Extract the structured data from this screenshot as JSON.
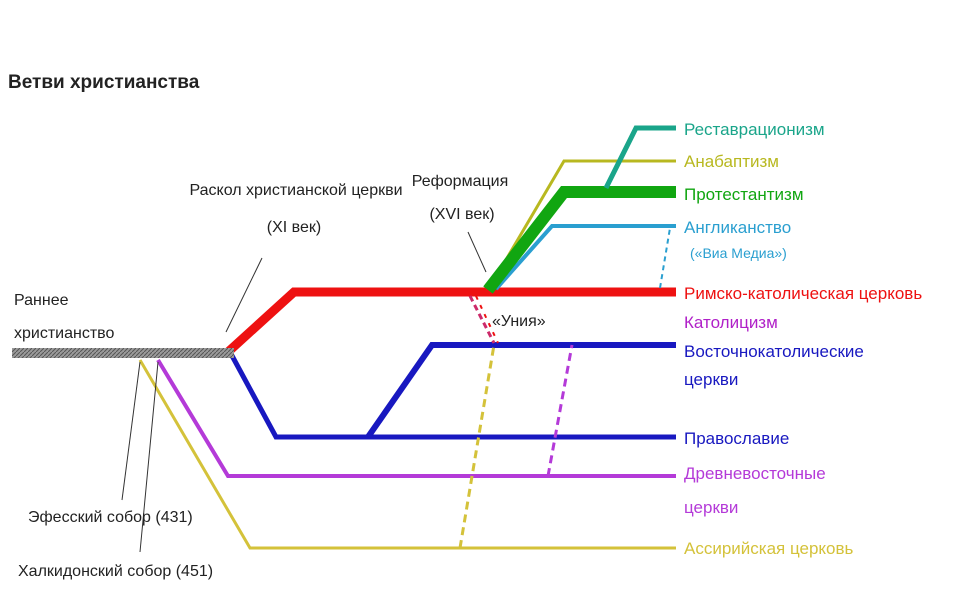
{
  "title": "Ветви христианства",
  "events": {
    "schism": [
      "Раскол христианской церкви",
      "(XI век)"
    ],
    "reformation": [
      "Реформация",
      "(XVI век)"
    ],
    "union": "«Уния»",
    "ephesus": "Эфесский собор (431)",
    "chalcedon": "Халкидонский собор (451)"
  },
  "root_label": [
    "Раннее",
    "христианство"
  ],
  "branches": {
    "restorationism": {
      "label": [
        "Реставрационизм"
      ],
      "color": "#1aa58a"
    },
    "anabaptism": {
      "label": [
        "Анабаптизм"
      ],
      "color": "#b8b820"
    },
    "protestantism": {
      "label": [
        "Протестантизм"
      ],
      "color": "#11a611"
    },
    "anglicanism": {
      "label": [
        "Англиканство",
        "(«Виа Медиа»)"
      ],
      "color": "#2a9fd0"
    },
    "roman_catholic": {
      "label": [
        "Римско-католическая церковь"
      ],
      "color": "#ee1111"
    },
    "catholicism": {
      "label": [
        "Католицизм"
      ],
      "color": "#b020c8"
    },
    "eastern_catholic": {
      "label": [
        "Восточнокатолические",
        "церкви"
      ],
      "color": "#1818c0"
    },
    "orthodoxy": {
      "label": [
        "Православие"
      ],
      "color": "#1818c0"
    },
    "oriental_orthodox": {
      "label": [
        "Древневосточные",
        "церкви"
      ],
      "color": "#b43ad8"
    },
    "assyrian": {
      "label": [
        "Ассирийская церковь"
      ],
      "color": "#d4c23a"
    }
  }
}
